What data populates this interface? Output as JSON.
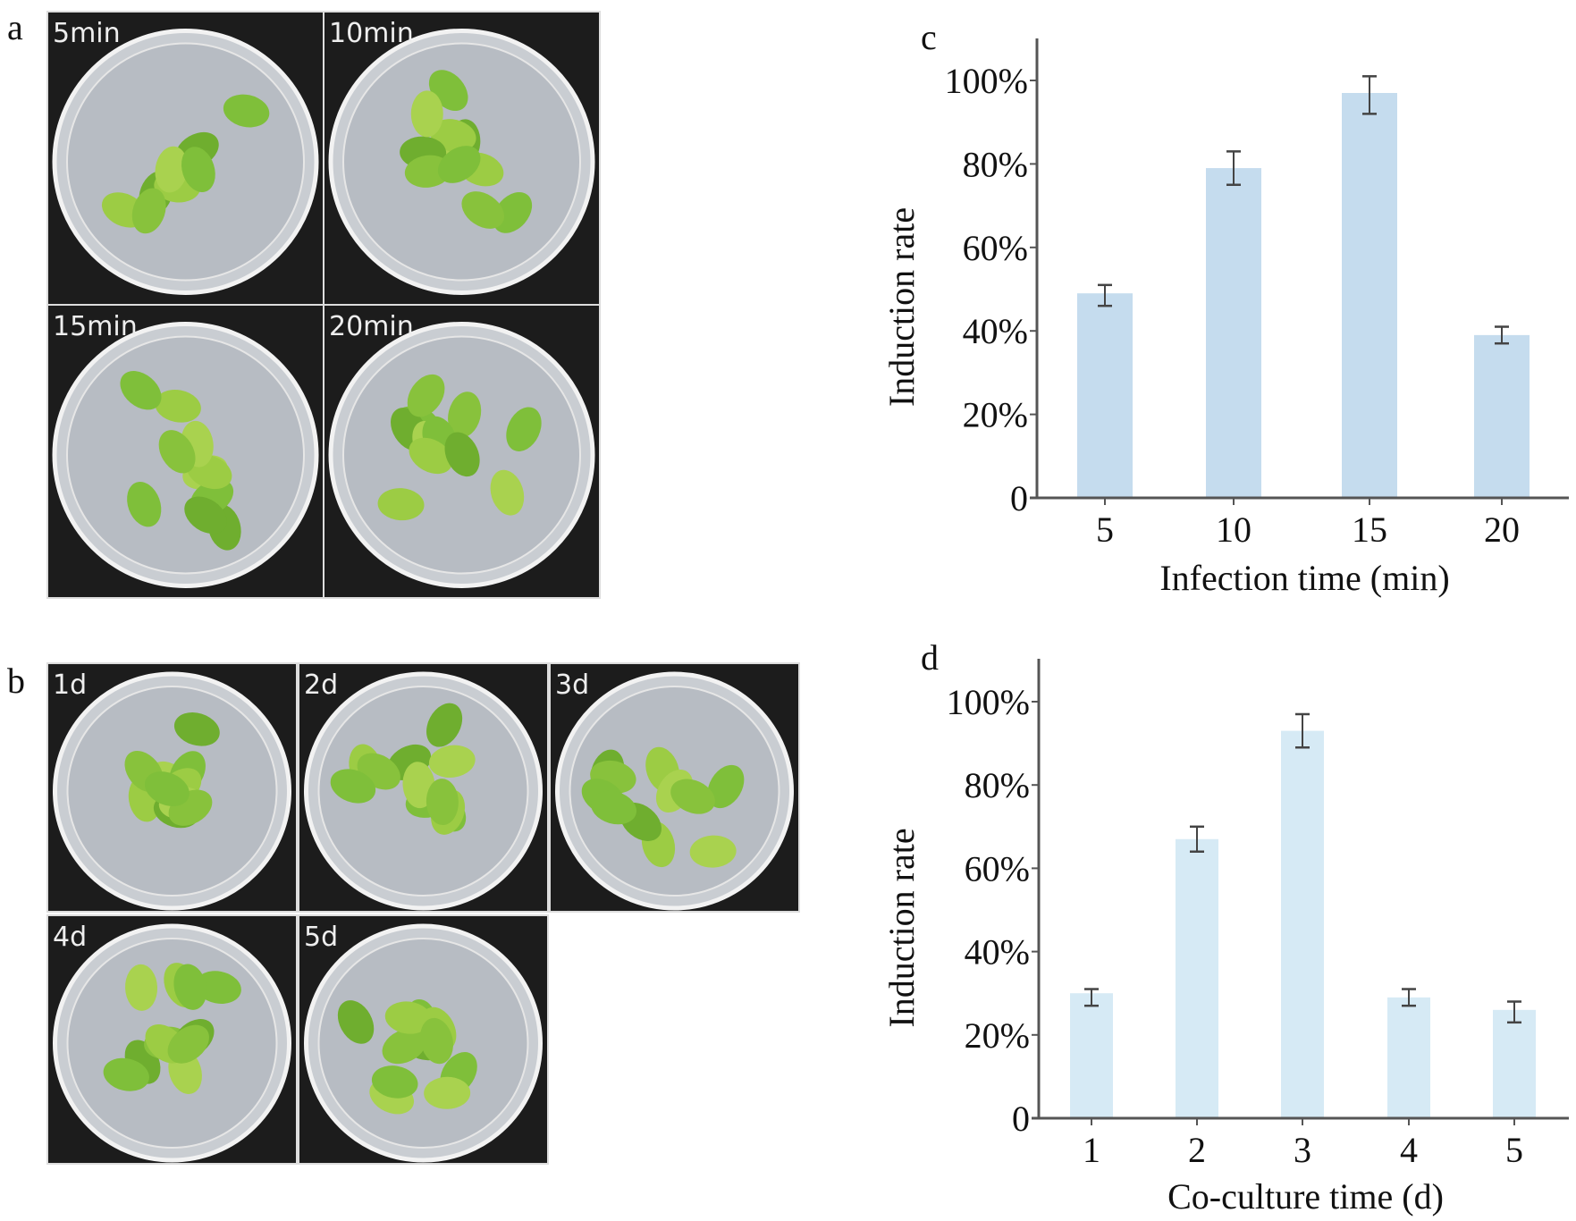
{
  "panels": {
    "a": {
      "label": "a",
      "photos": [
        "5min",
        "10min",
        "15min",
        "20min"
      ]
    },
    "b": {
      "label": "b",
      "photos": [
        "1d",
        "2d",
        "3d",
        "4d",
        "5d"
      ]
    }
  },
  "colors": {
    "bar": "#c5dcee",
    "bar_d": "#d6eaf5",
    "axis": "#555555",
    "leaf": "#8cc63f",
    "photo_bg": "#1c1c1c"
  },
  "chart_data": [
    {
      "panel_label": "c",
      "type": "bar",
      "title": "",
      "xlabel": "Infection time (min)",
      "ylabel": "Induction rate",
      "categories": [
        "5",
        "10",
        "15",
        "20"
      ],
      "values": [
        49,
        79,
        97,
        39
      ],
      "error_low": [
        46,
        75,
        92,
        37
      ],
      "error_high": [
        51,
        83,
        101,
        41
      ],
      "ylim": [
        0,
        110
      ],
      "yticks": [
        0,
        20,
        40,
        60,
        80,
        100
      ],
      "ytick_labels": [
        "0",
        "20%",
        "40%",
        "60%",
        "80%",
        "100%"
      ],
      "grid": false
    },
    {
      "panel_label": "d",
      "type": "bar",
      "title": "",
      "xlabel": "Co-culture time (d)",
      "ylabel": "Induction rate",
      "categories": [
        "1",
        "2",
        "3",
        "4",
        "5"
      ],
      "values": [
        30,
        67,
        93,
        29,
        26
      ],
      "error_low": [
        27,
        64,
        89,
        27,
        23
      ],
      "error_high": [
        31,
        70,
        97,
        31,
        28
      ],
      "ylim": [
        0,
        110
      ],
      "yticks": [
        0,
        20,
        40,
        60,
        80,
        100
      ],
      "ytick_labels": [
        "0",
        "20%",
        "40%",
        "60%",
        "80%",
        "100%"
      ],
      "grid": false
    }
  ]
}
